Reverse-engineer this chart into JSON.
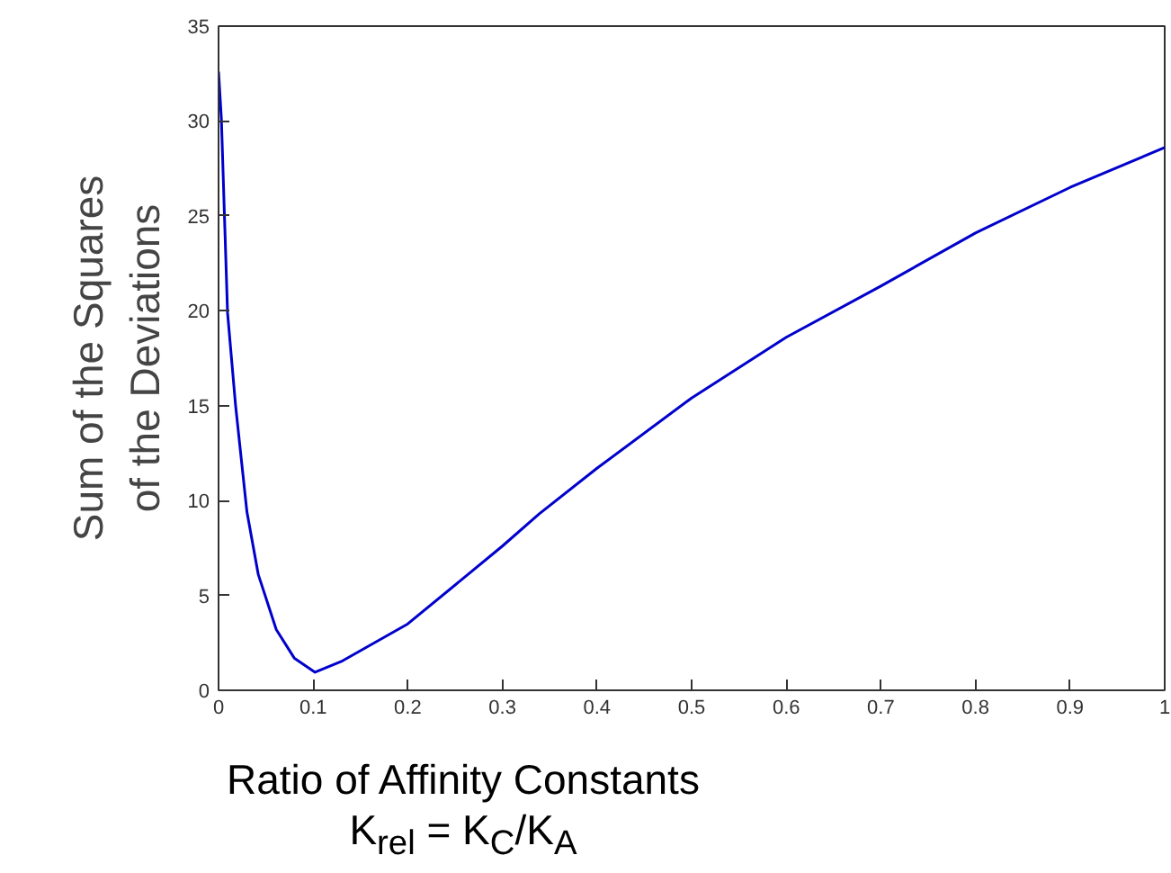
{
  "chart_data": {
    "type": "line",
    "xlabel": "Ratio of Affinity Constants\nK$_{rel}$ = K$_{C}$/K$_{A}$",
    "ylabel": "Sum of the Squares\nof the Deviations",
    "xlim": [
      0,
      1
    ],
    "ylim": [
      0,
      35
    ],
    "xticks": [
      0,
      0.1,
      0.2,
      0.3,
      0.4,
      0.5,
      0.6,
      0.7,
      0.8,
      0.9,
      1
    ],
    "yticks": [
      0,
      5,
      10,
      15,
      20,
      25,
      30,
      35
    ],
    "grid": false,
    "marker": "none",
    "line_style": "solid",
    "series": [
      {
        "color": "#0000cc",
        "x": [
          0,
          0.003,
          0.0095,
          0.018,
          0.03,
          0.042,
          0.061,
          0.08,
          0.102,
          0.131,
          0.2,
          0.3,
          0.339,
          0.4,
          0.5,
          0.6,
          0.7,
          0.8,
          0.9,
          1.0
        ],
        "values": [
          32.6,
          30.1,
          19.9,
          15.0,
          9.4,
          6.1,
          3.2,
          1.7,
          0.95,
          1.55,
          3.5,
          7.6,
          9.3,
          11.7,
          15.4,
          18.6,
          21.3,
          24.1,
          26.5,
          28.6
        ]
      }
    ]
  }
}
